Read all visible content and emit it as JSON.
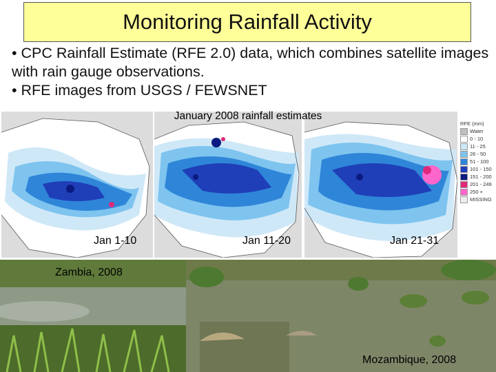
{
  "slide": {
    "title": "Monitoring Rainfall Activity",
    "bullets": [
      "• CPC Rainfall Estimate (RFE 2.0) data, which combines satellite images with rain gauge observations.",
      "• RFE images from USGS / FEWSNET"
    ]
  },
  "maps": {
    "title": "January 2008 rainfall estimates",
    "captions": [
      "Jan 1-10",
      "Jan 11-20",
      "Jan 21-31"
    ],
    "legend": {
      "header": "RFE (mm)",
      "items": [
        {
          "label": "Water",
          "color": "#bfbfbf"
        },
        {
          "label": "0 - 10",
          "color": "#ffffff"
        },
        {
          "label": "11 - 25",
          "color": "#cfe8f8"
        },
        {
          "label": "26 - 50",
          "color": "#7ec4ef"
        },
        {
          "label": "51 - 100",
          "color": "#2f86d8"
        },
        {
          "label": "101 - 150",
          "color": "#1f3fb8"
        },
        {
          "label": "151 - 200",
          "color": "#0a1a80"
        },
        {
          "label": "201 - 249",
          "color": "#e0287a"
        },
        {
          "label": "250 +",
          "color": "#ff66cc"
        },
        {
          "label": "MISSING",
          "color": "#eeeeee"
        }
      ]
    }
  },
  "photos": {
    "left_caption": "Zambia, 2008",
    "right_caption": "Mozambique, 2008"
  }
}
